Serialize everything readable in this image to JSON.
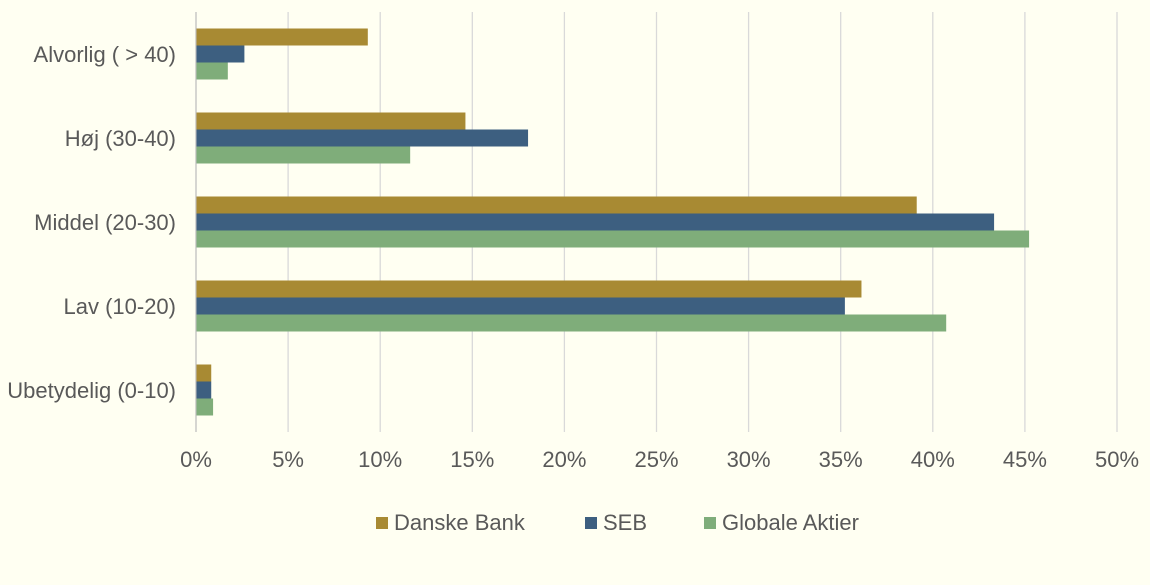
{
  "chart_data": {
    "type": "bar",
    "orientation": "horizontal",
    "categories": [
      "Alvorlig ( > 40)",
      "Høj (30-40)",
      "Middel (20-30)",
      "Lav (10-20)",
      "Ubetydelig (0-10)"
    ],
    "series": [
      {
        "name": "Danske Bank",
        "color": "#a88a33",
        "values": [
          9.3,
          14.6,
          39.1,
          36.1,
          0.8
        ]
      },
      {
        "name": "SEB",
        "color": "#3d5f80",
        "values": [
          2.6,
          18.0,
          43.3,
          35.2,
          0.8
        ]
      },
      {
        "name": "Globale Aktier",
        "color": "#7fad7a",
        "values": [
          1.7,
          11.6,
          45.2,
          40.7,
          0.9
        ]
      }
    ],
    "xlim": [
      0,
      50
    ],
    "xticks": [
      "0%",
      "5%",
      "10%",
      "15%",
      "20%",
      "25%",
      "30%",
      "35%",
      "40%",
      "45%",
      "50%"
    ],
    "grid": true,
    "legend_position": "bottom"
  }
}
